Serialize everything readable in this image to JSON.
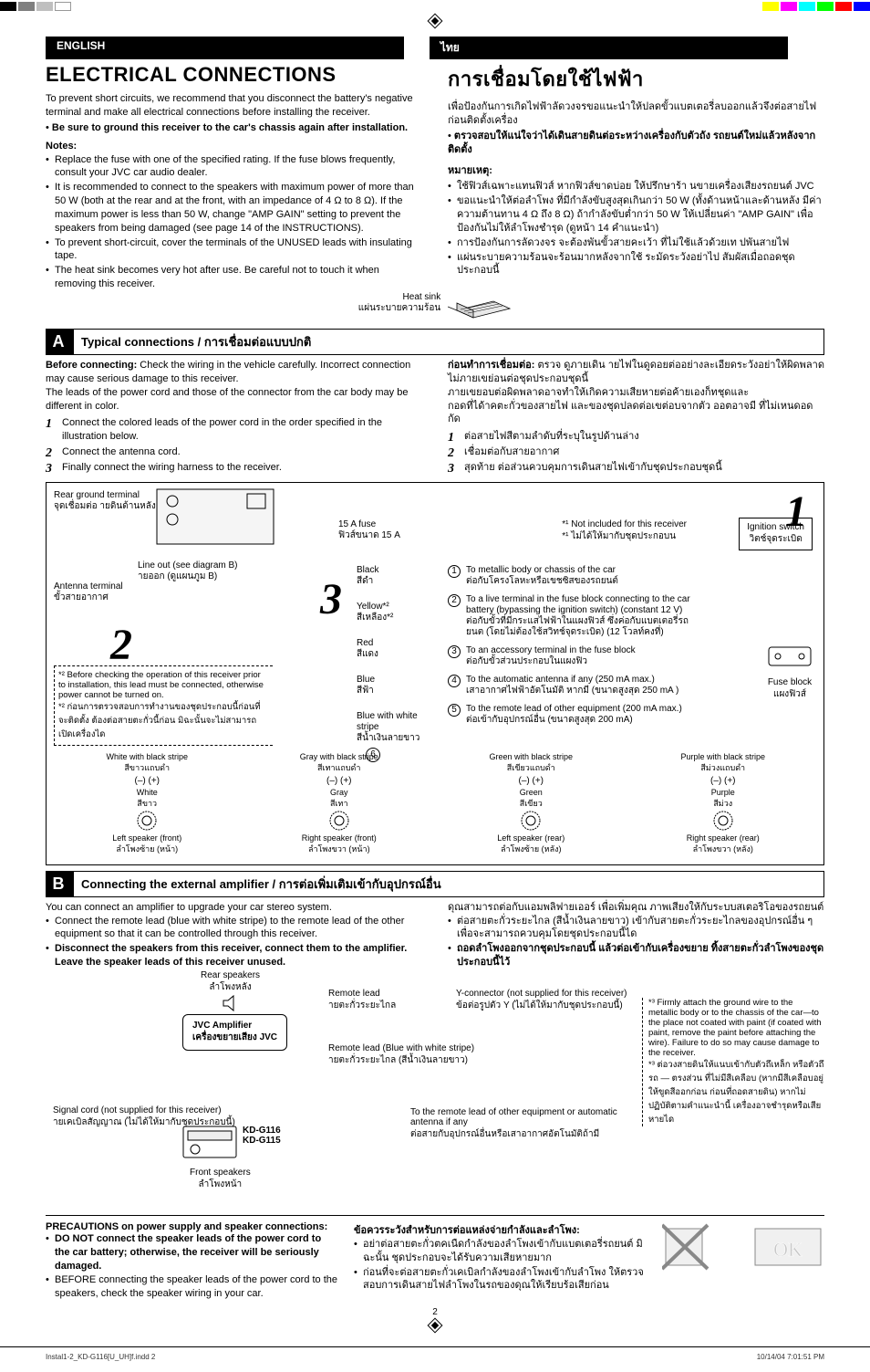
{
  "calibration": {
    "left_colors": [
      "#000000",
      "#7f7f7f",
      "#bfbfbf",
      "#ffffff"
    ],
    "right_colors": [
      "#ffff00",
      "#ff00ff",
      "#00ffff",
      "#00ff00",
      "#ff0000",
      "#0000ff"
    ]
  },
  "lang_tabs": {
    "en": "ENGLISH",
    "th": "ไทย"
  },
  "en": {
    "title": "ELECTRICAL CONNECTIONS",
    "intro1": "To prevent short circuits, we recommend that you disconnect the battery's negative terminal and make all electrical connections before installing the receiver.",
    "intro2": "Be sure to ground this receiver to the car's chassis again after installation.",
    "notes_hd": "Notes:",
    "notes": [
      "Replace the fuse with one of the specified rating. If the fuse blows frequently, consult your JVC car audio dealer.",
      "It is recommended to connect to the speakers with maximum power of more than 50 W (both at the rear and at the front, with an impedance of 4 Ω to 8 Ω). If the maximum power is less than 50 W, change \"AMP GAIN\" setting to prevent the speakers from being damaged (see page 14 of the INSTRUCTIONS).",
      "To prevent short-circuit, cover the terminals of the UNUSED leads with insulating tape.",
      "The heat sink becomes very hot after use. Be careful not to touch it when removing this receiver."
    ],
    "heat_sink": "Heat sink"
  },
  "th": {
    "title": "การเชื่อมโดยใช้ไฟฟ้า",
    "intro1": "เพื่อป้องกันการเกิดไฟฟ้าลัดวงจรขอแนะนำให้ปลดขั้วแบตเตอรี่ลบออกแล้วจึงต่อสายไฟก่อนติดตั้งเครื่อง",
    "intro2": "ตรวจสอบให้แน่ใจว่าได้เดินสายดินต่อระหว่างเครื่องกับตัวถัง รถยนต์ใหม่แล้วหลังจากติดตั้ง",
    "notes_hd": "หมายเหตุ:",
    "notes": [
      "ใช้ฟิวส์เฉพาะแทนฟิวส์ หากฟิวส์ขาดบ่อย ให้ปรึกษาร้า นขายเครื่องเสียงรถยนต์ JVC",
      "ขอแนะนำให้ต่อลำโพง ที่มีกำลังขับสูงสุดเกินกว่า 50 W (ทั้งด้านหน้าและด้านหลัง มีค่าความต้านทาน 4 Ω ถึง 8 Ω) ถ้ากำลังขับต่ำกว่า 50 W ให้เปลี่ยนค่า \"AMP GAIN\" เพื่อป้องกันไม่ให้ลำโพงชำรุด (ดูหน้า 14 คำแนะนำ)",
      "การป้องกันการลัดวงจร จะต้องพันขั้วสายคะเว้า ที่ไม่ใช้แล้วด้วยเท ปพันสายไฟ",
      "แผ่นระบายความร้อนจะร้อนมากหลังจากใช้ ระมัดระวังอย่าไป สัมผัสเมื่อถอดชุดประกอบนี้"
    ],
    "heat_sink": "แผ่นระบายความร้อน"
  },
  "sectA": {
    "letter": "A",
    "title_en": "Typical connections",
    "title_th": "การเชื่อมต่อแบบปกติ",
    "en": {
      "before": "Before connecting:",
      "before_body": "Check the wiring in the vehicle carefully. Incorrect connection may cause serious damage to this receiver.",
      "leads": "The leads of the power cord and those of the connector from the car body may be different in color.",
      "steps": [
        "Connect the colored leads of the power cord in the order specified in the illustration below.",
        "Connect the antenna cord.",
        "Finally connect the wiring harness to the receiver."
      ]
    },
    "th": {
      "before": "ก่อนทำการเชื่อมต่อ:",
      "before_body": "ตรวจ ดูภายเดิน ายไฟในดูดอยต่ออย่างละเอียดระวังอย่าให้ผิดพลาดไม่ภายเขย่อนต่อชุดประกอบชุดนี้",
      "leads": "ภายเขยอบต่อผิดพลาดอาจทำให้เกิดความเสียหายต่อค้ายเองก็ทชุดและ",
      "leads2": "กอดที่ได้าคตะกั่วของสายไฟ และของชุดปลดต่อเขต่อบจากตัว ออตอาจมี ที่ไม่เหนดอดกัด",
      "steps": [
        "ต่อสายไฟสีตามลำดับที่ระบุในรูปด้านล่าง",
        "เชื่อมต่อกับสายอากาศ",
        "สุดท้าย ต่อส่วนควบคุมการเดินสายไฟเข้ากับชุดประกอบชุดนี้"
      ]
    }
  },
  "diagramA": {
    "rear_ground": "Rear ground terminal",
    "rear_ground_th": "จุดเชื่อมต่อ\nายดินด้านหลัง",
    "fuse": "15 A fuse",
    "fuse_th": "ฟิวส์ขนาด 15 A",
    "not_included": "Not included for this receiver",
    "not_included_th": "ไม่ได้ให้มากับชุดประกอบน",
    "ignition": "Ignition switch",
    "ignition_th": "วิตช์จุดระเบิด",
    "line_out": "Line out (see diagram B)",
    "line_out_th": "ายออก (ดูแผนภูม B)",
    "antenna": "Antenna terminal",
    "antenna_th": "ขั้วสายอากาศ",
    "footnote1": "Before checking the operation of this receiver prior to installation, this lead must be connected, otherwise power cannot be turned on.",
    "footnote1_th": "ก่อนการตรวจสอบการทำงานของชุดประกอบนี้ก่อนที่จะติดตั้ง ต้องต่อสายตะกั่วนี้ก่อน มิฉะนั้นจะไม่สามารถเปิดเครื่องได",
    "wires": [
      {
        "color_en": "Black",
        "color_th": "สีดำ",
        "desc_en": "To metallic body or chassis of the car",
        "desc_th": "ต่อกับโครงโลหะหรือเขชซิสของรถยนต์",
        "num": 1
      },
      {
        "color_en": "Yellow*²",
        "color_th": "สีเหลือง*²",
        "desc_en": "To a live terminal in the fuse block connecting to the car battery (bypassing the ignition switch) (constant 12 V)",
        "desc_th": "ต่อกับขั้วที่มีกระแสไฟฟ้าในแผงฟิวส์ ซึ่งค่อกับแบตเตอรี่รถยนต (โดยไม่ต้องใช้สวิทช์จุดระเบิด) (12 โวลท์คงที่)",
        "num": 2
      },
      {
        "color_en": "Red",
        "color_th": "สีแดง",
        "desc_en": "To an accessory terminal in the fuse block",
        "desc_th": "ต่อกับขั้วส่วนประกอบในแผงฟิว",
        "num": 3
      },
      {
        "color_en": "Blue",
        "color_th": "สีฟ้า",
        "desc_en": "To the automatic antenna if any (250 mA max.)",
        "desc_th": "เสาอากาศไฟฟ้าอัตโนมัติ หากมี (ขนาดสูงสุด 250 mA )",
        "num": 4
      },
      {
        "color_en": "Blue with white stripe",
        "color_th": "สีน้ำเงินลายขาว",
        "desc_en": "To the remote lead of other equipment (200 mA max.)",
        "desc_th": "ต่อเข้ากับอุปกรณ์อื่น (ขนาดสูงสุด 200 mA)",
        "num": 5
      }
    ],
    "fuse_block": "Fuse block",
    "fuse_block_th": "แผงฟิวส์",
    "speakers": [
      {
        "strip_en": "White with black stripe",
        "strip_th": "สีขาวแถบดำ",
        "col_en": "White",
        "col_th": "สีขาว",
        "pos_en": "Left speaker (front)",
        "pos_th": "ลำโพงซ้าย (หน้า)"
      },
      {
        "strip_en": "Gray with black stripe",
        "strip_th": "สีเทาแถบดำ",
        "col_en": "Gray",
        "col_th": "สีเทา",
        "pos_en": "Right speaker (front)",
        "pos_th": "ลำโพงขวา (หน้า)"
      },
      {
        "strip_en": "Green with black stripe",
        "strip_th": "สีเขียวแถบดำ",
        "col_en": "Green",
        "col_th": "สีเขียว",
        "pos_en": "Left speaker (rear)",
        "pos_th": "ลำโพงซ้าย (หลัง)"
      },
      {
        "strip_en": "Purple with black stripe",
        "strip_th": "สีม่วงแถบดำ",
        "col_en": "Purple",
        "col_th": "สีม่วง",
        "pos_en": "Right speaker (rear)",
        "pos_th": "ลำโพงขวา (หลัง)"
      }
    ]
  },
  "sectB": {
    "letter": "B",
    "title_en": "Connecting the external amplifier",
    "title_th": "การต่อเพิ่มเติมเข้ากับอุปกรณ์อื่น",
    "en": {
      "intro": "You can connect an amplifier to upgrade your car stereo system.",
      "b1": "Connect the remote lead (blue with white stripe) to the remote lead of the other equipment so that it can be controlled through this receiver.",
      "b2": "Disconnect the speakers from this receiver, connect them to the amplifier. Leave the speaker leads of this receiver unused."
    },
    "th": {
      "intro": "ดุณสามารถต่อกับแอมพลิฟายเออร์ เพื่อเพิ่มคุณ ภาพเสียงให้กับระบบสเตอริโอของรถยนต์",
      "b1": "ต่อสายตะกั่วระยะไกล (สีน้ำเงินลายขาว) เข้ากับสายตะกั่วระยะไกลของอุปกรณ์อื่น ๆ เพื่อจะสามารถควบคุมโดยชุดประกอบนี้ได",
      "b2": "ถอดลำโพงออกจากชุดประกอบนี้ แล้วต่อเข้ากับเครื่องขยาย ทิ้งสายตะกั่วลำโพงของชุดประกอบนี้ไว้"
    },
    "diagram": {
      "rear_sp": "Rear speakers",
      "rear_sp_th": "ลำโพงหลัง",
      "front_sp": "Front speakers",
      "front_sp_th": "ลำโพงหน้า",
      "amp": "JVC Amplifier",
      "amp_th": "เครื่องขยายเสียง JVC",
      "remote": "Remote lead",
      "remote_th": "ายตะกั่วระยะไกล",
      "remote_blue": "Remote lead (Blue with white stripe)",
      "remote_blue_th": "ายตะกั่วระยะไกล (สีน้ำเงินลายขาว)",
      "ycon": "Y-connector (not supplied for this receiver)",
      "ycon_th": "ข้อต่อรูปตัว Y (ไม่ได้ให้มากับชุดประกอบนี้)",
      "signal": "Signal cord (not supplied for this receiver)",
      "signal_th": "ายเคเบิลสัญญาณ (ไม่ได้ให้มากับชุดประกอบนี้)",
      "models": "KD-G116\nKD-G115",
      "to_remote": "To the remote lead of other equipment or automatic antenna if any",
      "to_remote_th": "ต่อสายกับอุปกรณ์อื่นหรือเสาอากาศอัตโนมัติถ้ามี",
      "fn3": "Firmly attach the ground wire to the metallic body or to the chassis of the car—to the place not coated with paint (if coated with paint, remove the paint before attaching the wire). Failure to do so may cause damage to the receiver.",
      "fn3_th": "ต่อวงสายดินให้แนบเข้ากับตัวถึเหล็ก หรือตัวถึรถ — ตรงส่วน ที่ไม่มีสีเคลือบ (หากมีสีเคลือบอยู่ ให้ขูดสีออกก่อน ก่อนที่ถอดสายดิน) หากไม่ปฏิบัติตามคำแนะนำนี้ เครื่องอาจชำรุดหรือเสียหายได"
    }
  },
  "precautions": {
    "en_hd": "PRECAUTIONS on power supply and speaker connections:",
    "en_b1": "DO NOT connect the speaker leads of the power cord to the car battery; otherwise, the receiver will be seriously damaged.",
    "en_b2": "BEFORE connecting the speaker leads of the power cord to the speakers, check the speaker wiring in your car.",
    "th_hd": "ข้อควรระวังสำหรับการต่อแหล่งจ่ายกำลังและลำโพง:",
    "th_b1": "อย่าต่อสายตะกั่วตคเนืดกำลังของลำโพงเข้ากับแบตเตอรี่รถยนต์ มิฉะนั้น ชุดประกอบจะได้รับความเสียหายมาก",
    "th_b2": "ก่อนที่จะต่อสายตะกั่วเคเบิลกำลังของลำโพงเข้ากับลำโพง ให้ตรวจสอบการเดินสายไฟลำโพงในรถของดุณให้เรียบร้อเสียก่อน"
  },
  "page_num": "2",
  "footer": {
    "file": "Instal1-2_KD-G116[U_UH]f.indd   2",
    "date": "10/14/04   7:01:51 PM"
  }
}
